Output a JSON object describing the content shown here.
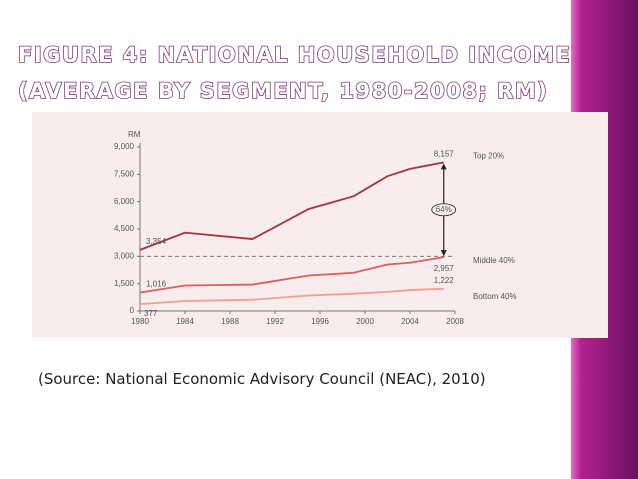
{
  "slide": {
    "title_lines": [
      "FIGURE 4: NATIONAL HOUSEHOLD INCOME",
      "(AVERAGE BY SEGMENT, 1980-2008; RM)"
    ],
    "source": "(Source: National Economic Advisory Council (NEAC), 2010)"
  },
  "chart_data": {
    "type": "line",
    "y_label": "RM",
    "x": [
      1980,
      1984,
      1990,
      1995,
      1999,
      2002,
      2004,
      2007
    ],
    "series": [
      {
        "name": "Top 20%",
        "color": "#a8323a",
        "values": [
          3354,
          4300,
          3950,
          5600,
          6300,
          7400,
          7800,
          8157
        ],
        "value_labels": [
          "3,354",
          null,
          null,
          null,
          null,
          null,
          null,
          "8,157"
        ]
      },
      {
        "name": "Middle 40%",
        "color": "#d9605e",
        "values": [
          1016,
          1400,
          1450,
          1950,
          2100,
          2550,
          2650,
          2957
        ],
        "value_labels": [
          "1,016",
          null,
          null,
          null,
          null,
          null,
          null,
          "2,957"
        ]
      },
      {
        "name": "Bottom 40%",
        "color": "#f0a08e",
        "values": [
          377,
          550,
          620,
          850,
          950,
          1050,
          1150,
          1222
        ],
        "value_labels": [
          "377",
          null,
          null,
          null,
          null,
          null,
          null,
          "1,222"
        ]
      }
    ],
    "annotation": "64%",
    "reference_line": 3000,
    "xlim": [
      1980,
      2008
    ],
    "xticks": [
      1980,
      1984,
      1988,
      1992,
      1996,
      2000,
      2004,
      2008
    ],
    "ylim": [
      0,
      9000
    ],
    "yticks": [
      0,
      {
        "value": 1500,
        "label": "1,500"
      },
      {
        "value": 3000,
        "label": "3,000"
      },
      {
        "value": 4500,
        "label": "4,500"
      },
      {
        "value": 6000,
        "label": "6,000"
      },
      {
        "value": 7500,
        "label": "7,500"
      },
      {
        "value": 9000,
        "label": "9,000"
      }
    ]
  }
}
